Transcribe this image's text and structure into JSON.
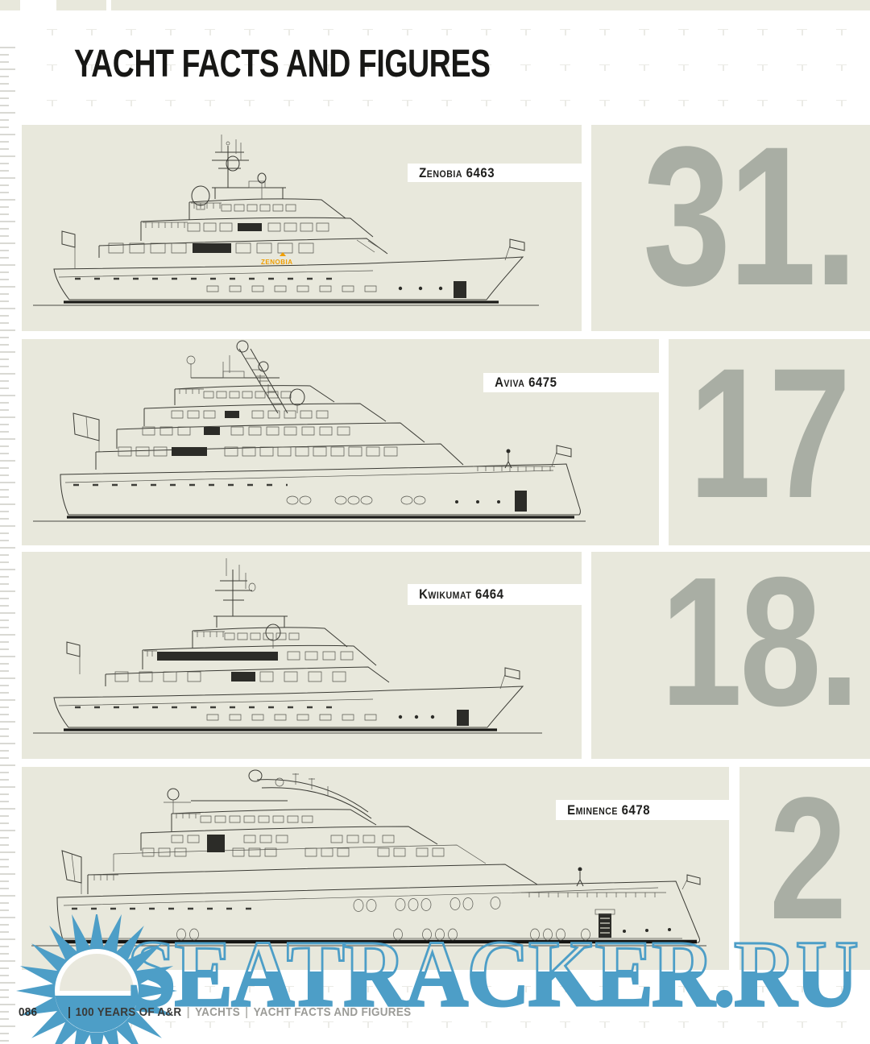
{
  "header": {
    "title": "YACHT FACTS AND FIGURES"
  },
  "panels": [
    {
      "label": "Zenobia 6463",
      "number": "31.",
      "drawing": "zenobia-side-profile"
    },
    {
      "label": "Aviva 6475",
      "number": "17",
      "drawing": "aviva-side-profile"
    },
    {
      "label": "Kwikumat 6464",
      "number": "18.",
      "drawing": "kwikumat-side-profile"
    },
    {
      "label": "Eminence 6478",
      "number": "2",
      "drawing": "eminence-side-profile"
    }
  ],
  "brand_mark": {
    "text": "ZENOBIA",
    "color": "#f09e00"
  },
  "watermark": {
    "text": "SEATRACKER.RU",
    "logo": "sun-star-logo",
    "color": "#4d9ec7"
  },
  "footer": {
    "page_number": "086",
    "divider": "|",
    "book": "100 YEARS OF A&R",
    "section": "YACHTS",
    "chapter": "YACHT FACTS AND FIGURES"
  },
  "colors": {
    "panel_beige": "#e8e8dc",
    "number_grey": "#a9aea4",
    "ink": "#1d1d1b",
    "footer_muted": "#9b9b97",
    "watermark_blue": "#4d9ec7",
    "brand_orange": "#f09e00"
  }
}
